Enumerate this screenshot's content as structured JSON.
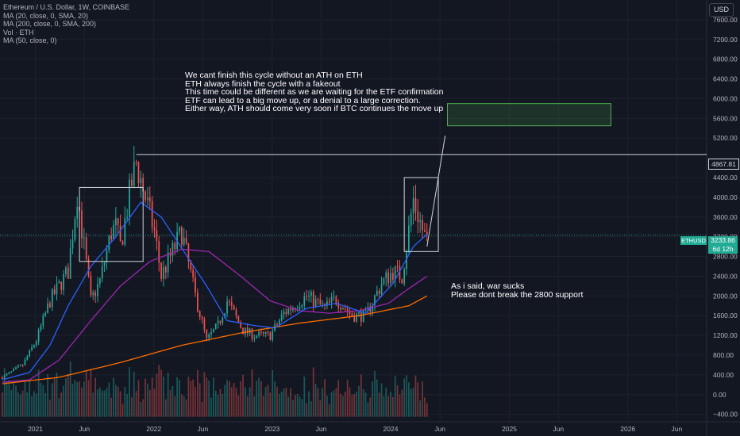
{
  "legend": {
    "title": "Ethereum / U.S. Dollar, 1W, COINBASE",
    "ma20": "MA (20, close, 0, SMA, 20)",
    "ma200": "MA (200, close, 0, SMA, 200)",
    "vol": "Vol · ETH",
    "ma50": "MA (50, close, 0)"
  },
  "currency": "USD",
  "annotations": {
    "top_lines": [
      "We cant finish this cycle without an ATH on ETH",
      "ETH always finish the cycle with a fakeout",
      "This time could be different as we are waiting for the ETF confirmation",
      "ETF can lead to a big move up, or a denial to a large correction.",
      "Either way, ATH should come very soon if BTC continues the move up"
    ],
    "bottom_lines": [
      "As i said, war sucks",
      "Please dont break the 2800 support"
    ]
  },
  "ath_label": "4867.81",
  "symbol_label": "ETHUSD",
  "price_label": "3233.86",
  "countdown_label": "6d 12h",
  "colors": {
    "background": "#131722",
    "up": "#26a69a",
    "down": "#ef5350",
    "ma20": "#2962ff",
    "ma50": "#9c27b0",
    "ma200": "#ff6d00",
    "target_box": "#4caf50",
    "text": "#ffffff",
    "axis_text": "#b2b5be"
  },
  "chart_data": {
    "type": "candlestick",
    "y_ticks": [
      -400,
      0,
      400,
      800,
      1200,
      1600,
      2000,
      2400,
      2800,
      3200,
      3600,
      4000,
      4400,
      5200,
      5600,
      6000,
      6400,
      6800,
      7200,
      7600
    ],
    "y_tick_labels": [
      "−400.00",
      "0.00",
      "400.00",
      "800.00",
      "1200.00",
      "1600.00",
      "2000.00",
      "2400.00",
      "2800.00",
      "3200.00",
      "3600.00",
      "4000.00",
      "4400.00",
      "5200.00",
      "5600.00",
      "6000.00",
      "6400.00",
      "6800.00",
      "7200.00",
      "7600.00"
    ],
    "x_ticks": [
      "2021-01-01",
      "2021-06-01",
      "2022-01-01",
      "2022-06-01",
      "2023-01-01",
      "2023-06-01",
      "2024-01-01",
      "2024-06-01",
      "2025-01-01",
      "2025-06-01",
      "2026-01-01",
      "2026-06-01"
    ],
    "x_tick_labels": [
      "2021",
      "Jun",
      "2022",
      "Jun",
      "2023",
      "Jun",
      "2024",
      "Jun",
      "2025",
      "Jun",
      "2026",
      "Jun"
    ],
    "ylim": [
      -550,
      8000
    ],
    "xlim": [
      "2020-09-14",
      "2026-09-01"
    ],
    "price_anchors": [
      [
        "2020-09-21",
        350
      ],
      [
        "2020-11-23",
        600
      ],
      [
        "2021-01-04",
        1100
      ],
      [
        "2021-02-15",
        1900
      ],
      [
        "2021-04-12",
        2500
      ],
      [
        "2021-05-10",
        4100
      ],
      [
        "2021-06-21",
        1900
      ],
      [
        "2021-07-19",
        2300
      ],
      [
        "2021-08-23",
        3300
      ],
      [
        "2021-09-06",
        3400
      ],
      [
        "2021-09-20",
        3000
      ],
      [
        "2021-10-25",
        4300
      ],
      [
        "2021-11-08",
        4700
      ],
      [
        "2021-12-06",
        4000
      ],
      [
        "2022-01-03",
        3300
      ],
      [
        "2022-01-24",
        2400
      ],
      [
        "2022-03-28",
        3300
      ],
      [
        "2022-05-09",
        2000
      ],
      [
        "2022-06-13",
        1100
      ],
      [
        "2022-07-18",
        1400
      ],
      [
        "2022-08-15",
        1900
      ],
      [
        "2022-10-03",
        1300
      ],
      [
        "2022-11-07",
        1200
      ],
      [
        "2022-12-26",
        1200
      ],
      [
        "2023-02-06",
        1650
      ],
      [
        "2023-04-17",
        2000
      ],
      [
        "2023-06-12",
        1750
      ],
      [
        "2023-07-17",
        1950
      ],
      [
        "2023-09-04",
        1600
      ],
      [
        "2023-10-16",
        1600
      ],
      [
        "2023-12-04",
        2250
      ],
      [
        "2024-01-08",
        2500
      ],
      [
        "2024-02-05",
        2400
      ],
      [
        "2024-03-11",
        3950
      ],
      [
        "2024-04-15",
        3200
      ],
      [
        "2024-04-22",
        3233.86
      ]
    ],
    "ma20_anchors": [
      [
        "2020-09-21",
        300
      ],
      [
        "2020-12-14",
        450
      ],
      [
        "2021-02-15",
        1000
      ],
      [
        "2021-04-12",
        1800
      ],
      [
        "2021-06-21",
        2600
      ],
      [
        "2021-09-06",
        3200
      ],
      [
        "2021-11-22",
        3900
      ],
      [
        "2022-01-24",
        3600
      ],
      [
        "2022-04-04",
        2900
      ],
      [
        "2022-06-13",
        2200
      ],
      [
        "2022-08-15",
        1500
      ],
      [
        "2022-11-07",
        1400
      ],
      [
        "2023-01-09",
        1350
      ],
      [
        "2023-04-17",
        1750
      ],
      [
        "2023-07-17",
        1850
      ],
      [
        "2023-10-16",
        1650
      ],
      [
        "2024-01-08",
        2250
      ],
      [
        "2024-03-11",
        3000
      ],
      [
        "2024-04-22",
        3250
      ]
    ],
    "ma50_anchors": [
      [
        "2020-09-21",
        250
      ],
      [
        "2020-12-14",
        300
      ],
      [
        "2021-03-15",
        700
      ],
      [
        "2021-06-21",
        1500
      ],
      [
        "2021-09-20",
        2200
      ],
      [
        "2021-12-20",
        2700
      ],
      [
        "2022-03-28",
        2950
      ],
      [
        "2022-06-20",
        2900
      ],
      [
        "2022-09-26",
        2400
      ],
      [
        "2022-12-26",
        1900
      ],
      [
        "2023-03-27",
        1700
      ],
      [
        "2023-06-26",
        1650
      ],
      [
        "2023-09-25",
        1700
      ],
      [
        "2023-12-25",
        1850
      ],
      [
        "2024-02-26",
        2150
      ],
      [
        "2024-04-22",
        2400
      ]
    ],
    "ma200_anchors": [
      [
        "2020-09-21",
        220
      ],
      [
        "2021-03-15",
        350
      ],
      [
        "2021-09-20",
        650
      ],
      [
        "2022-03-28",
        1000
      ],
      [
        "2022-09-26",
        1250
      ],
      [
        "2023-03-27",
        1450
      ],
      [
        "2023-09-25",
        1600
      ],
      [
        "2024-02-26",
        1800
      ],
      [
        "2024-04-22",
        2000
      ]
    ],
    "boxes": [
      {
        "x0": "2021-05-17",
        "x1": "2021-11-29",
        "y0": 2700,
        "y1": 4200,
        "style": "outline"
      },
      {
        "x0": "2024-02-12",
        "x1": "2024-05-27",
        "y0": 2900,
        "y1": 4400,
        "style": "outline"
      },
      {
        "x0": "2024-06-24",
        "x1": "2025-11-10",
        "y0": 5450,
        "y1": 5900,
        "style": "filled"
      }
    ],
    "ath_level": 4867.81,
    "ath_line_start": "2021-11-08",
    "last_price": 3233.86,
    "projection": [
      [
        "2024-04-22",
        3000
      ],
      [
        "2024-06-17",
        5250
      ]
    ],
    "volume_axis_top": 0
  }
}
